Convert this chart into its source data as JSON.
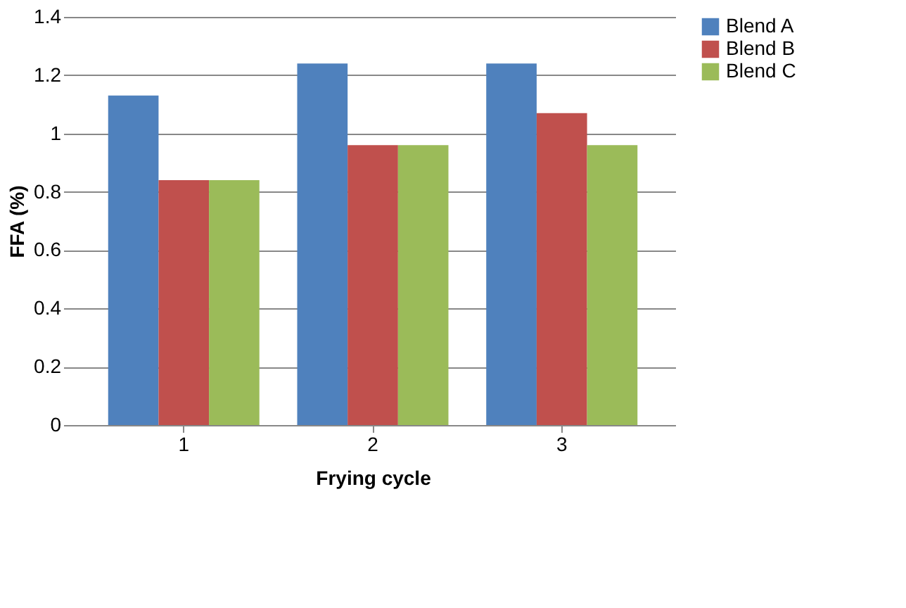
{
  "chart_data": {
    "type": "bar",
    "xlabel": "Frying cycle",
    "ylabel": "FFA (%)",
    "categories": [
      "1",
      "2",
      "3"
    ],
    "series": [
      {
        "name": "Blend A",
        "color": "#4f81bd",
        "values": [
          1.13,
          1.24,
          1.24
        ]
      },
      {
        "name": "Blend B",
        "color": "#c0504d",
        "values": [
          0.84,
          0.96,
          1.07
        ]
      },
      {
        "name": "Blend C",
        "color": "#9bbb59",
        "values": [
          0.84,
          0.96,
          0.96
        ]
      }
    ],
    "ylim": [
      0,
      1.4
    ],
    "yticks": [
      0,
      0.2,
      0.4,
      0.6,
      0.8,
      1,
      1.2,
      1.4
    ],
    "grid": "y",
    "legend": "right"
  }
}
